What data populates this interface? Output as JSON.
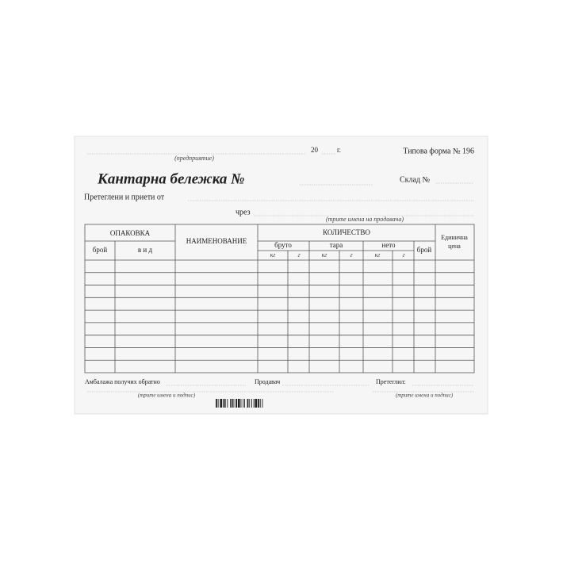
{
  "header": {
    "enterprise_hint": "(предприятие)",
    "year_prefix": "20",
    "year_suffix": "г.",
    "form_number": "Типова форма № 196"
  },
  "title": "Кантарна бележка №",
  "warehouse": "Склад №",
  "received_from": "Претеглени и приети от",
  "via": "чрез",
  "seller_names_hint": "(трите имена на продавача)",
  "table": {
    "packaging": "ОПАКОВКА",
    "count": "брой",
    "kind": "в и д",
    "name": "НАИМЕНОВАНИЕ",
    "quantity": "КОЛИЧЕСТВО",
    "gross": "бруто",
    "tare": "тара",
    "net": "нето",
    "kg": "кг",
    "g": "г",
    "pieces": "брой",
    "unit_price": [
      "Единична",
      "цена"
    ]
  },
  "footer": {
    "packaging_returned": "Амбалажа получих обратно",
    "seller": "Продавач",
    "weigher": "Претеглил:",
    "signature_hint": "(трите имена и подпис)"
  }
}
